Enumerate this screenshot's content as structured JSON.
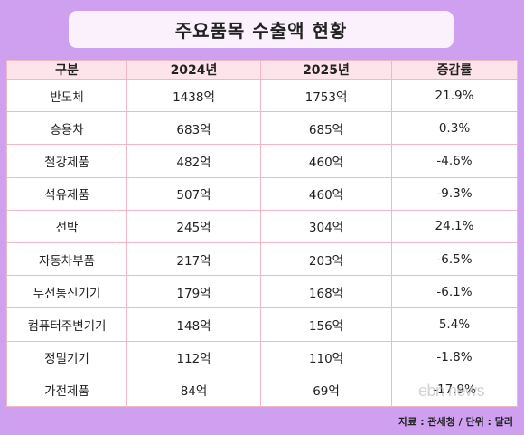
{
  "title": "주요품목 수출액 현황",
  "table": {
    "headers": [
      "구분",
      "2024년",
      "2025년",
      "증감률"
    ],
    "rows": [
      [
        "반도체",
        "1438억",
        "1753억",
        "21.9%"
      ],
      [
        "승용차",
        "683억",
        "685억",
        "0.3%"
      ],
      [
        "철강제품",
        "482억",
        "460억",
        "-4.6%"
      ],
      [
        "석유제품",
        "507억",
        "460억",
        "-9.3%"
      ],
      [
        "선박",
        "245억",
        "304억",
        "24.1%"
      ],
      [
        "자동차부품",
        "217억",
        "203억",
        "-6.5%"
      ],
      [
        "무선통신기기",
        "179억",
        "168억",
        "-6.1%"
      ],
      [
        "컴퓨터주변기기",
        "148억",
        "156억",
        "5.4%"
      ],
      [
        "정밀기기",
        "112억",
        "110억",
        "-1.8%"
      ],
      [
        "가전제품",
        "84억",
        "69억",
        "-17.9%"
      ]
    ]
  },
  "source": "자료 : 관세청 / 단위 : 달러",
  "watermark": "ebn news",
  "colors": {
    "background": "#cf9ff0",
    "title_box": "#fbf1fc",
    "header_row": "#fce4ea",
    "border": "#f1b7c4"
  }
}
